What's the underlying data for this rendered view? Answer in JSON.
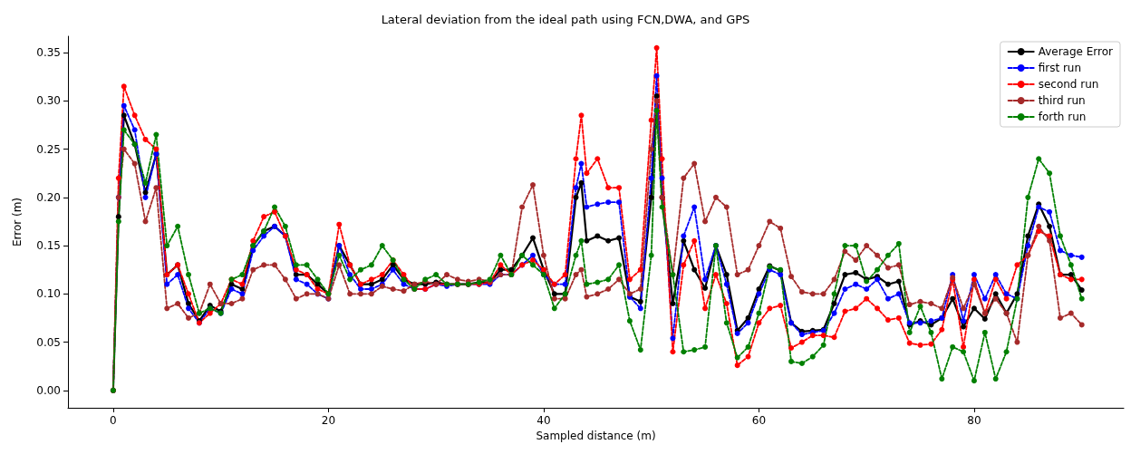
{
  "chart_data": {
    "type": "line",
    "title": "Lateral deviation from the ideal path using FCN,DWA, and GPS",
    "xlabel": "Sampled distance (m)",
    "ylabel": "Error (m)",
    "x": [
      0,
      0.5,
      1,
      2,
      3,
      4,
      5,
      6,
      7,
      8,
      9,
      10,
      11,
      12,
      13,
      14,
      15,
      16,
      17,
      18,
      19,
      20,
      21,
      22,
      23,
      24,
      25,
      26,
      27,
      28,
      29,
      30,
      31,
      32,
      33,
      34,
      35,
      36,
      37,
      38,
      39,
      40,
      41,
      42,
      43,
      43.5,
      44,
      45,
      46,
      47,
      48,
      49,
      50,
      50.5,
      51,
      52,
      53,
      54,
      55,
      56,
      57,
      58,
      59,
      60,
      61,
      62,
      63,
      64,
      65,
      66,
      67,
      68,
      69,
      70,
      71,
      72,
      73,
      74,
      75,
      76,
      77,
      78,
      79,
      80,
      81,
      82,
      83,
      84,
      85,
      86,
      87,
      88,
      89,
      90
    ],
    "series": [
      {
        "name": "Average Error",
        "color": "#000000",
        "line_style": "solid",
        "values": [
          0,
          0.18,
          0.285,
          0.255,
          0.205,
          0.245,
          0.12,
          0.13,
          0.09,
          0.072,
          0.088,
          0.082,
          0.11,
          0.105,
          0.15,
          0.165,
          0.17,
          0.16,
          0.12,
          0.12,
          0.11,
          0.1,
          0.15,
          0.13,
          0.11,
          0.11,
          0.115,
          0.13,
          0.115,
          0.11,
          0.11,
          0.112,
          0.11,
          0.11,
          0.11,
          0.112,
          0.112,
          0.125,
          0.125,
          0.14,
          0.158,
          0.125,
          0.1,
          0.1,
          0.2,
          0.215,
          0.155,
          0.16,
          0.155,
          0.158,
          0.097,
          0.092,
          0.2,
          0.305,
          0.2,
          0.09,
          0.155,
          0.125,
          0.106,
          0.15,
          0.12,
          0.062,
          0.075,
          0.105,
          0.129,
          0.124,
          0.07,
          0.061,
          0.062,
          0.063,
          0.09,
          0.12,
          0.122,
          0.115,
          0.118,
          0.11,
          0.113,
          0.068,
          0.072,
          0.068,
          0.075,
          0.095,
          0.066,
          0.085,
          0.074,
          0.1,
          0.08,
          0.1,
          0.16,
          0.193,
          0.17,
          0.12,
          0.12,
          0.104
        ]
      },
      {
        "name": "first run",
        "color": "#0000ff",
        "line_style": "dashed",
        "values": [
          0,
          0.2,
          0.295,
          0.27,
          0.2,
          0.245,
          0.11,
          0.12,
          0.085,
          0.07,
          0.085,
          0.08,
          0.105,
          0.1,
          0.145,
          0.16,
          0.17,
          0.16,
          0.115,
          0.11,
          0.1,
          0.095,
          0.15,
          0.12,
          0.105,
          0.105,
          0.11,
          0.125,
          0.11,
          0.105,
          0.105,
          0.11,
          0.108,
          0.11,
          0.11,
          0.11,
          0.11,
          0.12,
          0.12,
          0.13,
          0.14,
          0.12,
          0.11,
          0.11,
          0.21,
          0.235,
          0.19,
          0.193,
          0.195,
          0.195,
          0.097,
          0.085,
          0.22,
          0.326,
          0.22,
          0.054,
          0.16,
          0.19,
          0.115,
          0.15,
          0.11,
          0.059,
          0.07,
          0.1,
          0.125,
          0.12,
          0.07,
          0.058,
          0.06,
          0.062,
          0.08,
          0.105,
          0.11,
          0.105,
          0.115,
          0.095,
          0.1,
          0.07,
          0.07,
          0.072,
          0.075,
          0.12,
          0.072,
          0.12,
          0.095,
          0.12,
          0.1,
          0.095,
          0.15,
          0.19,
          0.185,
          0.145,
          0.14,
          0.138
        ]
      },
      {
        "name": "second run",
        "color": "#ff0000",
        "line_style": "dashed",
        "values": [
          0,
          0.22,
          0.315,
          0.285,
          0.26,
          0.25,
          0.12,
          0.13,
          0.1,
          0.07,
          0.08,
          0.09,
          0.115,
          0.11,
          0.155,
          0.18,
          0.185,
          0.16,
          0.125,
          0.12,
          0.105,
          0.1,
          0.172,
          0.13,
          0.11,
          0.115,
          0.12,
          0.135,
          0.12,
          0.105,
          0.105,
          0.11,
          0.11,
          0.11,
          0.11,
          0.11,
          0.112,
          0.13,
          0.12,
          0.13,
          0.135,
          0.125,
          0.11,
          0.12,
          0.24,
          0.285,
          0.225,
          0.24,
          0.21,
          0.21,
          0.115,
          0.125,
          0.28,
          0.355,
          0.24,
          0.04,
          0.13,
          0.155,
          0.085,
          0.12,
          0.09,
          0.026,
          0.035,
          0.07,
          0.085,
          0.088,
          0.044,
          0.05,
          0.057,
          0.057,
          0.055,
          0.082,
          0.085,
          0.095,
          0.085,
          0.073,
          0.075,
          0.049,
          0.047,
          0.048,
          0.063,
          0.115,
          0.045,
          0.115,
          0.08,
          0.115,
          0.095,
          0.13,
          0.14,
          0.165,
          0.16,
          0.12,
          0.115,
          0.115
        ]
      },
      {
        "name": "third run",
        "color": "#a52a2a",
        "line_style": "dashed",
        "values": [
          0,
          0.2,
          0.25,
          0.235,
          0.175,
          0.21,
          0.085,
          0.09,
          0.075,
          0.08,
          0.11,
          0.09,
          0.09,
          0.095,
          0.125,
          0.13,
          0.13,
          0.115,
          0.095,
          0.1,
          0.1,
          0.095,
          0.13,
          0.1,
          0.1,
          0.1,
          0.108,
          0.105,
          0.103,
          0.11,
          0.113,
          0.11,
          0.12,
          0.115,
          0.113,
          0.115,
          0.113,
          0.12,
          0.12,
          0.19,
          0.213,
          0.14,
          0.095,
          0.095,
          0.12,
          0.125,
          0.097,
          0.1,
          0.105,
          0.115,
          0.1,
          0.105,
          0.25,
          0.3,
          0.2,
          0.12,
          0.22,
          0.235,
          0.175,
          0.2,
          0.19,
          0.12,
          0.125,
          0.15,
          0.175,
          0.168,
          0.118,
          0.102,
          0.1,
          0.1,
          0.115,
          0.144,
          0.135,
          0.15,
          0.14,
          0.127,
          0.13,
          0.089,
          0.092,
          0.09,
          0.085,
          0.117,
          0.085,
          0.11,
          0.08,
          0.095,
          0.08,
          0.05,
          0.14,
          0.17,
          0.155,
          0.075,
          0.08,
          0.068
        ]
      },
      {
        "name": "forth run",
        "color": "#008000",
        "line_style": "dashed",
        "values": [
          0,
          0.175,
          0.27,
          0.255,
          0.215,
          0.265,
          0.15,
          0.17,
          0.12,
          0.08,
          0.085,
          0.08,
          0.115,
          0.12,
          0.15,
          0.165,
          0.19,
          0.17,
          0.13,
          0.13,
          0.115,
          0.1,
          0.14,
          0.115,
          0.125,
          0.13,
          0.15,
          0.135,
          0.115,
          0.105,
          0.115,
          0.12,
          0.11,
          0.11,
          0.11,
          0.112,
          0.115,
          0.14,
          0.12,
          0.14,
          0.13,
          0.12,
          0.085,
          0.1,
          0.14,
          0.155,
          0.11,
          0.112,
          0.115,
          0.13,
          0.072,
          0.042,
          0.14,
          0.29,
          0.19,
          0.12,
          0.04,
          0.042,
          0.045,
          0.15,
          0.07,
          0.034,
          0.045,
          0.08,
          0.128,
          0.125,
          0.03,
          0.028,
          0.035,
          0.047,
          0.1,
          0.15,
          0.15,
          0.113,
          0.125,
          0.14,
          0.152,
          0.06,
          0.087,
          0.06,
          0.012,
          0.045,
          0.04,
          0.01,
          0.06,
          0.012,
          0.04,
          0.095,
          0.2,
          0.24,
          0.225,
          0.16,
          0.13,
          0.095
        ]
      }
    ],
    "xlim": [
      -4.2,
      93.9
    ],
    "ylim": [
      -0.018,
      0.367
    ],
    "xticks": [
      0,
      20,
      40,
      60,
      80
    ],
    "yticks": [
      {
        "value": 0,
        "label": "0.00"
      },
      {
        "value": 0.05,
        "label": "0.05"
      },
      {
        "value": 0.1,
        "label": "0.10"
      },
      {
        "value": 0.15,
        "label": "0.15"
      },
      {
        "value": 0.2,
        "label": "0.20"
      },
      {
        "value": 0.25,
        "label": "0.25"
      },
      {
        "value": 0.3,
        "label": "0.30"
      },
      {
        "value": 0.35,
        "label": "0.35"
      }
    ],
    "grid": false,
    "legend": "top right",
    "marker": "circle"
  }
}
